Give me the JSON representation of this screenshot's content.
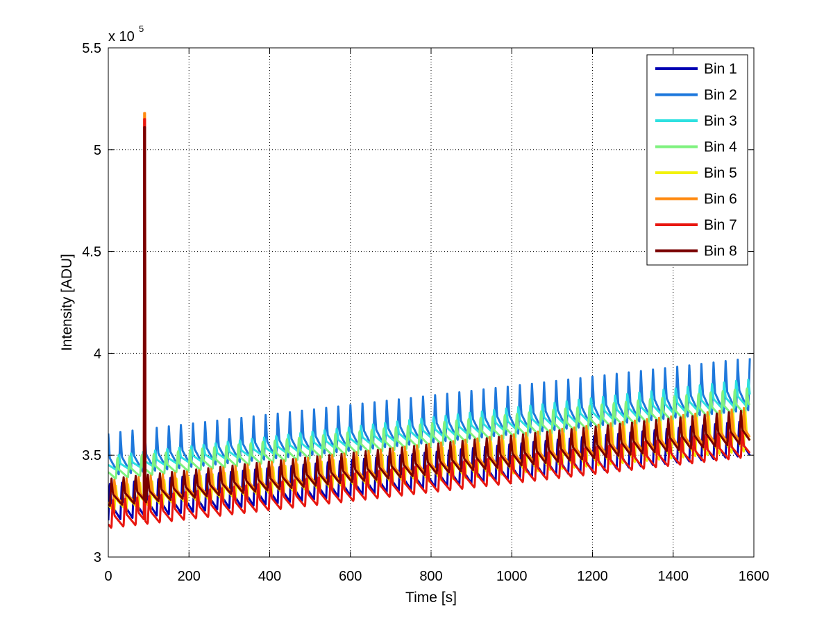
{
  "chart_data": {
    "type": "line",
    "title": "",
    "xlabel": "Time [s]",
    "ylabel": "Intensity [ADU]",
    "xlim": [
      0,
      1600
    ],
    "ylim": [
      300000,
      550000
    ],
    "xticks": [
      0,
      200,
      400,
      600,
      800,
      1000,
      1200,
      1400,
      1600
    ],
    "xtick_labels": [
      "0",
      "200",
      "400",
      "600",
      "800",
      "1000",
      "1200",
      "1400",
      "1600"
    ],
    "yticks": [
      300000,
      350000,
      400000,
      450000,
      500000,
      550000
    ],
    "ytick_labels": [
      "3",
      "3.5",
      "4",
      "4.5",
      "5",
      "5.5"
    ],
    "y_multiplier_base": "x 10",
    "y_multiplier_exp": "5",
    "grid": true,
    "legend_position": "top-right",
    "oscillation_period_s": 30,
    "spike_time_s": 90,
    "series": [
      {
        "name": "Bin 1",
        "color": "#0000B3",
        "low": [
          318000,
          350000
        ],
        "high": [
          337000,
          368000
        ],
        "spike_peak": 340000
      },
      {
        "name": "Bin 2",
        "color": "#1E78DC",
        "low": [
          340000,
          372000
        ],
        "high": [
          361000,
          398000
        ],
        "spike_peak": 362000
      },
      {
        "name": "Bin 3",
        "color": "#2EE0E0",
        "low": [
          342000,
          374000
        ],
        "high": [
          350000,
          388000
        ],
        "spike_peak": 350000
      },
      {
        "name": "Bin 4",
        "color": "#7FF27F",
        "low": [
          338000,
          370000
        ],
        "high": [
          349000,
          384000
        ],
        "spike_peak": 349000
      },
      {
        "name": "Bin 5",
        "color": "#F2F20A",
        "low": [
          322000,
          352000
        ],
        "high": [
          335000,
          372000
        ],
        "spike_peak": 336000
      },
      {
        "name": "Bin 6",
        "color": "#FF8A10",
        "low": [
          324000,
          355000
        ],
        "high": [
          338000,
          374000
        ],
        "spike_peak": 518000
      },
      {
        "name": "Bin 7",
        "color": "#E8160F",
        "low": [
          314000,
          349000
        ],
        "high": [
          329000,
          364000
        ],
        "spike_peak": 515000
      },
      {
        "name": "Bin 8",
        "color": "#7A0000",
        "low": [
          325000,
          356000
        ],
        "high": [
          339000,
          373000
        ],
        "spike_peak": 511000
      }
    ]
  }
}
